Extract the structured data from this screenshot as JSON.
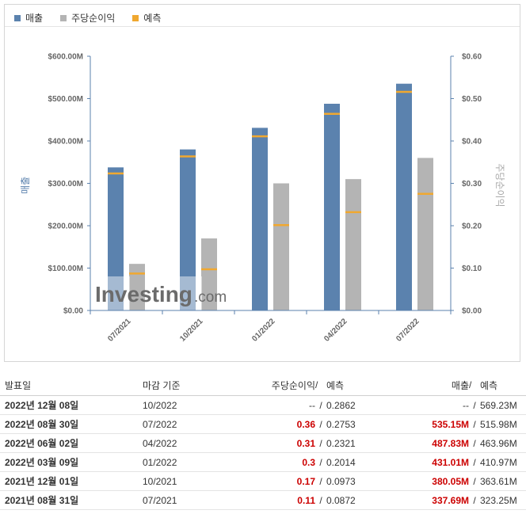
{
  "legend": [
    {
      "label": "매출",
      "color": "#5b82ae"
    },
    {
      "label": "주당순이익",
      "color": "#b4b4b4"
    },
    {
      "label": "예측",
      "color": "#f0a830"
    }
  ],
  "chart_data": {
    "type": "bar",
    "categories": [
      "07/2021",
      "10/2021",
      "01/2022",
      "04/2022",
      "07/2022"
    ],
    "series": [
      {
        "name": "매출",
        "axis": "left",
        "color": "#5b82ae",
        "values": [
          337.69,
          380.05,
          431.01,
          487.83,
          535.15
        ]
      },
      {
        "name": "매출",
        "kind": "forecast",
        "axis": "left",
        "color": "#f0a830",
        "values": [
          323.25,
          363.61,
          410.97,
          463.96,
          515.98
        ]
      },
      {
        "name": "주당순이익",
        "axis": "right",
        "color": "#b4b4b4",
        "values": [
          0.11,
          0.17,
          0.3,
          0.31,
          0.36
        ]
      },
      {
        "name": "주당순이익",
        "kind": "forecast",
        "axis": "right",
        "color": "#f0a830",
        "values": [
          0.0872,
          0.0973,
          0.2014,
          0.2321,
          0.2753
        ]
      }
    ],
    "ylabel": "매출",
    "y2label": "주당순이익",
    "ylim": [
      0,
      600
    ],
    "y2lim": [
      0,
      0.6
    ],
    "yticks": [
      "$0.00",
      "$100.00M",
      "$200.00M",
      "$300.00M",
      "$400.00M",
      "$500.00M",
      "$600.00M"
    ],
    "y2ticks": [
      "$0.00",
      "$0.10",
      "$0.20",
      "$0.30",
      "$0.40",
      "$0.50",
      "$0.60"
    ],
    "watermark": "Investing.com",
    "grid": false,
    "legend_position": "top-left"
  },
  "table": {
    "headers": {
      "date": "발표일",
      "period": "마감 기준",
      "eps": "주당순이익",
      "sep": "/",
      "eps_forecast": "예측",
      "revenue": "매출",
      "revenue_forecast": "예측"
    },
    "rows": [
      {
        "date": "2022년 12월 08일",
        "period": "10/2022",
        "eps": "--",
        "eps_forecast": "0.2862",
        "revenue": "--",
        "revenue_forecast": "569.23M"
      },
      {
        "date": "2022년 08월 30일",
        "period": "07/2022",
        "eps": "0.36",
        "eps_forecast": "0.2753",
        "revenue": "535.15M",
        "revenue_forecast": "515.98M"
      },
      {
        "date": "2022년 06월 02일",
        "period": "04/2022",
        "eps": "0.31",
        "eps_forecast": "0.2321",
        "revenue": "487.83M",
        "revenue_forecast": "463.96M"
      },
      {
        "date": "2022년 03월 09일",
        "period": "01/2022",
        "eps": "0.3",
        "eps_forecast": "0.2014",
        "revenue": "431.01M",
        "revenue_forecast": "410.97M"
      },
      {
        "date": "2021년 12월 01일",
        "period": "10/2021",
        "eps": "0.17",
        "eps_forecast": "0.0973",
        "revenue": "380.05M",
        "revenue_forecast": "363.61M"
      },
      {
        "date": "2021년 08월 31일",
        "period": "07/2021",
        "eps": "0.11",
        "eps_forecast": "0.0872",
        "revenue": "337.69M",
        "revenue_forecast": "323.25M"
      }
    ]
  }
}
